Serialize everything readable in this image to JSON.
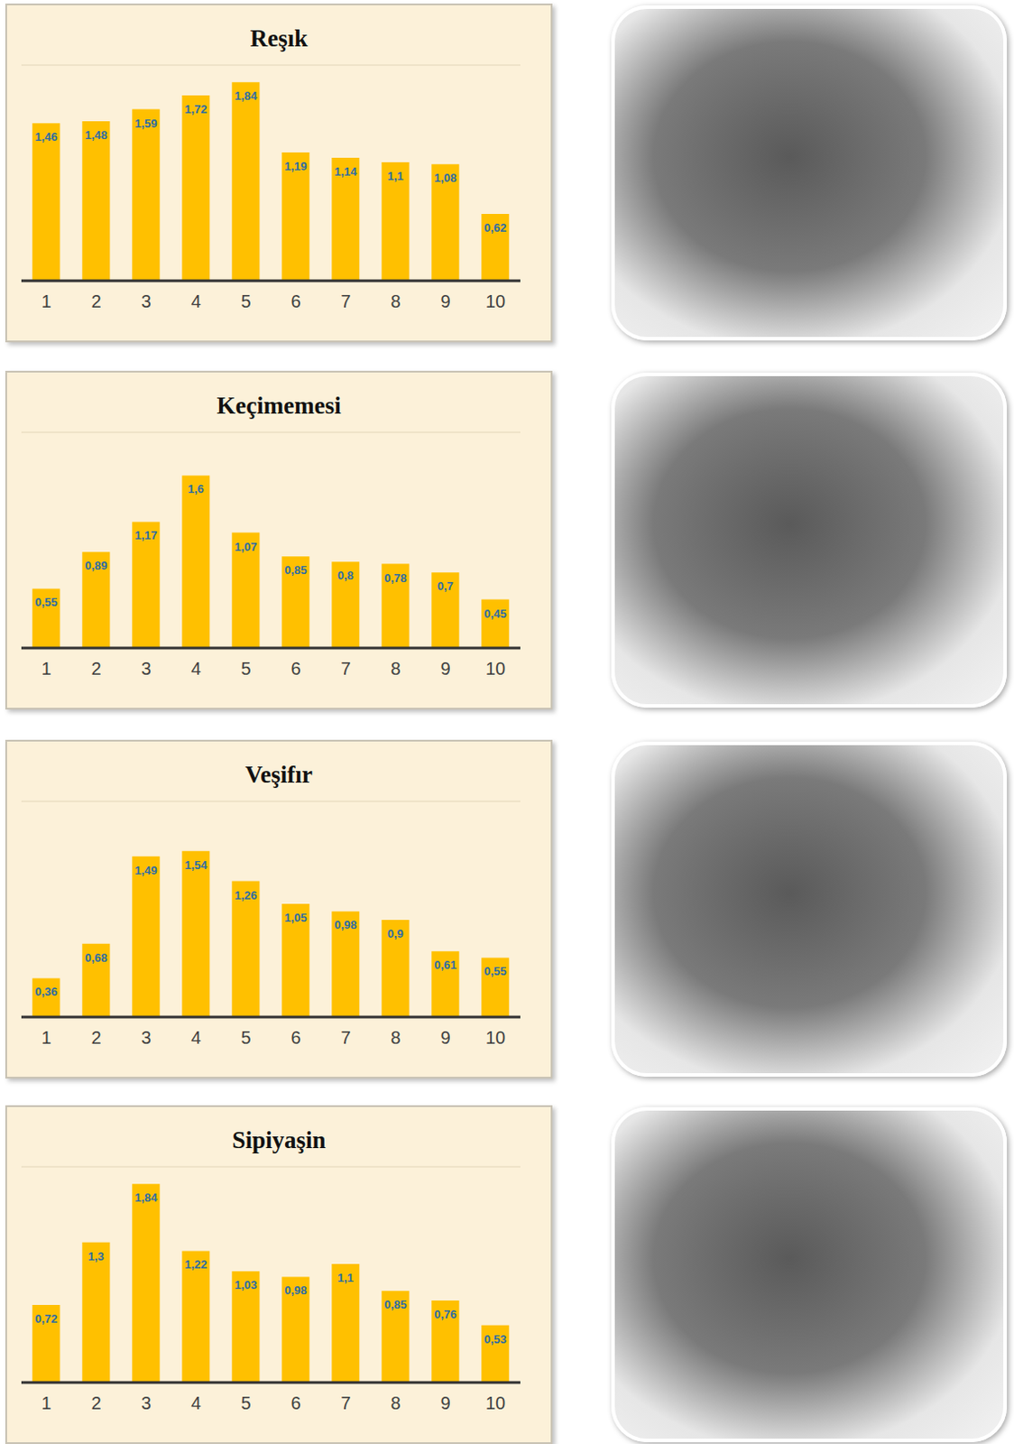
{
  "chart_data": [
    {
      "type": "bar",
      "title": "Reşık",
      "categories": [
        "1",
        "2",
        "3",
        "4",
        "5",
        "6",
        "7",
        "8",
        "9",
        "10"
      ],
      "values": [
        1.46,
        1.48,
        1.59,
        1.72,
        1.84,
        1.19,
        1.14,
        1.1,
        1.08,
        0.62
      ],
      "value_labels": [
        "1,46",
        "1,48",
        "1,59",
        "1,72",
        "1,84",
        "1,19",
        "1,14",
        "1,1",
        "1,08",
        "0,62"
      ],
      "color": "#ffc000",
      "ylim": [
        0,
        2
      ],
      "yticks": [
        0,
        0.5,
        1,
        1.5,
        2
      ],
      "grid": true,
      "data_labels": true,
      "tick_labels": "x"
    },
    {
      "type": "bar",
      "title": "Keçimemesi",
      "categories": [
        "1",
        "2",
        "3",
        "4",
        "5",
        "6",
        "7",
        "8",
        "9",
        "10"
      ],
      "values": [
        0.55,
        0.89,
        1.17,
        1.6,
        1.07,
        0.85,
        0.8,
        0.78,
        0.7,
        0.45
      ],
      "value_labels": [
        "0,55",
        "0,89",
        "1,17",
        "1,6",
        "1,07",
        "0,85",
        "0,8",
        "0,78",
        "0,7",
        "0,45"
      ],
      "color": "#ffc000",
      "ylim": [
        0,
        2
      ],
      "yticks": [
        0,
        0.5,
        1,
        1.5,
        2
      ],
      "grid": true,
      "data_labels": true,
      "tick_labels": "x"
    },
    {
      "type": "bar",
      "title": "Veşifır",
      "categories": [
        "1",
        "2",
        "3",
        "4",
        "5",
        "6",
        "7",
        "8",
        "9",
        "10"
      ],
      "values": [
        0.36,
        0.68,
        1.49,
        1.54,
        1.26,
        1.05,
        0.98,
        0.9,
        0.61,
        0.55
      ],
      "value_labels": [
        "0,36",
        "0,68",
        "1,49",
        "1,54",
        "1,26",
        "1,05",
        "0,98",
        "0,9",
        "0,61",
        "0,55"
      ],
      "color": "#ffc000",
      "ylim": [
        0,
        2
      ],
      "yticks": [
        0,
        0.5,
        1,
        1.5,
        2
      ],
      "grid": true,
      "data_labels": true,
      "tick_labels": "x"
    },
    {
      "type": "bar",
      "title": "Sipiyaşin",
      "categories": [
        "1",
        "2",
        "3",
        "4",
        "5",
        "6",
        "7",
        "8",
        "9",
        "10"
      ],
      "values": [
        0.72,
        1.3,
        1.84,
        1.22,
        1.03,
        0.98,
        1.1,
        0.85,
        0.76,
        0.53
      ],
      "value_labels": [
        "0,72",
        "1,3",
        "1,84",
        "1,22",
        "1,03",
        "0,98",
        "1,1",
        "0,85",
        "0,76",
        "0,53"
      ],
      "color": "#ffc000",
      "ylim": [
        0,
        2
      ],
      "yticks": [
        0,
        0.5,
        1,
        1.5,
        2
      ],
      "grid": true,
      "data_labels": true,
      "tick_labels": "x"
    }
  ]
}
